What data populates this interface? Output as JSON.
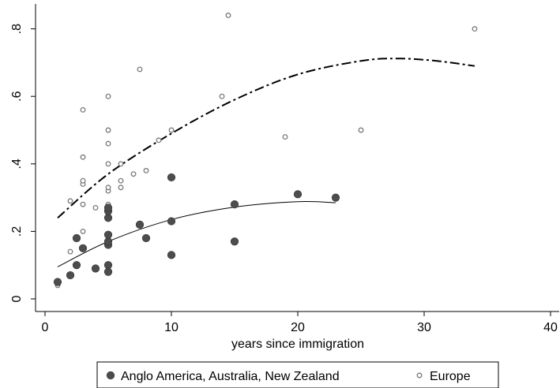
{
  "chart_data": {
    "type": "scatter",
    "title": "",
    "xlabel": "years since immigration",
    "ylabel": "",
    "xlim": [
      0,
      40
    ],
    "ylim": [
      0,
      0.85
    ],
    "x_ticks": [
      0,
      10,
      20,
      30,
      40
    ],
    "x_tick_labels": [
      "0",
      "10",
      "20",
      "30",
      "40"
    ],
    "y_ticks": [
      0,
      0.2,
      0.4,
      0.6,
      0.8
    ],
    "y_tick_labels": [
      "0",
      ".2",
      ".4",
      ".6",
      ".8"
    ],
    "grid": false,
    "legend_position": "bottom",
    "series": [
      {
        "name": "Anglo America, Australia, New Zealand",
        "marker": "filled-circle",
        "color": "#4d4d4d",
        "points": [
          [
            1,
            0.05
          ],
          [
            2,
            0.07
          ],
          [
            2.5,
            0.1
          ],
          [
            2.5,
            0.18
          ],
          [
            3,
            0.15
          ],
          [
            4,
            0.09
          ],
          [
            5,
            0.08
          ],
          [
            5,
            0.1
          ],
          [
            5,
            0.16
          ],
          [
            5,
            0.17
          ],
          [
            5,
            0.19
          ],
          [
            5,
            0.24
          ],
          [
            5,
            0.26
          ],
          [
            5,
            0.27
          ],
          [
            7.5,
            0.22
          ],
          [
            8,
            0.18
          ],
          [
            10,
            0.13
          ],
          [
            10,
            0.23
          ],
          [
            10,
            0.36
          ],
          [
            15,
            0.17
          ],
          [
            15,
            0.28
          ],
          [
            20,
            0.31
          ],
          [
            23,
            0.3
          ]
        ],
        "fit": {
          "style": "solid",
          "points": [
            [
              1,
              0.095
            ],
            [
              5,
              0.17
            ],
            [
              10,
              0.235
            ],
            [
              15,
              0.272
            ],
            [
              20,
              0.288
            ],
            [
              23,
              0.285
            ]
          ]
        }
      },
      {
        "name": "Europe",
        "marker": "hollow-circle",
        "color": "#7a7a7a",
        "points": [
          [
            1,
            0.04
          ],
          [
            2,
            0.14
          ],
          [
            2,
            0.29
          ],
          [
            3,
            0.2
          ],
          [
            3,
            0.28
          ],
          [
            3,
            0.34
          ],
          [
            3,
            0.35
          ],
          [
            3,
            0.42
          ],
          [
            3,
            0.56
          ],
          [
            4,
            0.27
          ],
          [
            5,
            0.27
          ],
          [
            5,
            0.28
          ],
          [
            5,
            0.32
          ],
          [
            5,
            0.33
          ],
          [
            5,
            0.4
          ],
          [
            5,
            0.46
          ],
          [
            5,
            0.5
          ],
          [
            5,
            0.6
          ],
          [
            6,
            0.33
          ],
          [
            6,
            0.35
          ],
          [
            6,
            0.4
          ],
          [
            7,
            0.37
          ],
          [
            7.5,
            0.68
          ],
          [
            8,
            0.38
          ],
          [
            9,
            0.47
          ],
          [
            10,
            0.5
          ],
          [
            14,
            0.6
          ],
          [
            14.5,
            0.84
          ],
          [
            19,
            0.48
          ],
          [
            25,
            0.5
          ],
          [
            34,
            0.8
          ]
        ],
        "fit": {
          "style": "dash-dot",
          "points": [
            [
              1,
              0.24
            ],
            [
              5,
              0.37
            ],
            [
              10,
              0.49
            ],
            [
              15,
              0.59
            ],
            [
              20,
              0.665
            ],
            [
              25,
              0.705
            ],
            [
              28,
              0.712
            ],
            [
              31,
              0.705
            ],
            [
              34,
              0.69
            ]
          ]
        }
      }
    ]
  }
}
